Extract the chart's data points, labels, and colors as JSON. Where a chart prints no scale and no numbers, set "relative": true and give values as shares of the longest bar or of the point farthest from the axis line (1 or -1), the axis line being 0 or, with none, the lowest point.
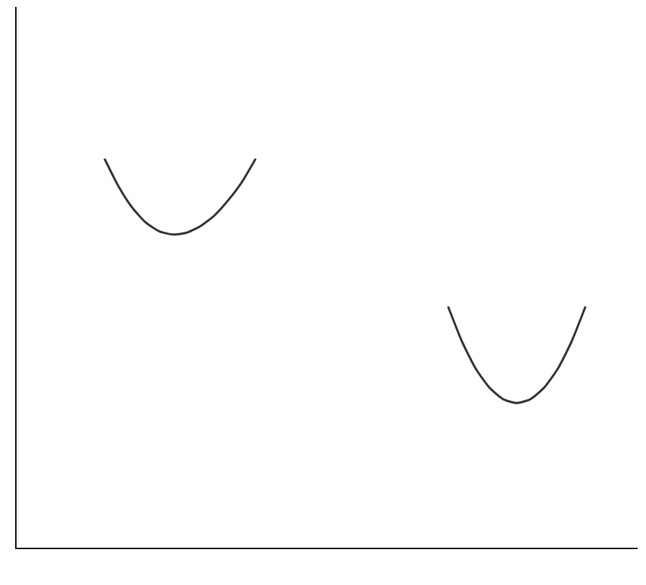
{
  "chart_data": {
    "type": "line",
    "relative": true,
    "categories": [
      null,
      null,
      null,
      null,
      null,
      null,
      null,
      null,
      null,
      null,
      null,
      null,
      null,
      null,
      null,
      null,
      null,
      null,
      null,
      null,
      null,
      null,
      null,
      null,
      null,
      null,
      null,
      null,
      null,
      null,
      null,
      null,
      null,
      null,
      null,
      null,
      null,
      null,
      null,
      null,
      null,
      null,
      null,
      null,
      null
    ],
    "series": [
      {
        "color": "#333333",
        "values": [
          null,
          null,
          null,
          null,
          null,
          null,
          1.0,
          0.93,
          0.875,
          0.836,
          0.813,
          0.805,
          0.81,
          0.827,
          0.854,
          0.893,
          0.94,
          1.0,
          null,
          null,
          null,
          null,
          null,
          null,
          null,
          null,
          null,
          null,
          null,
          null,
          null,
          null,
          null,
          null,
          null,
          null,
          null,
          null,
          null,
          null,
          null,
          null,
          null,
          null,
          null
        ]
      },
      {
        "color": "#333333",
        "values": [
          null,
          null,
          null,
          null,
          null,
          null,
          null,
          null,
          null,
          null,
          null,
          null,
          null,
          null,
          null,
          null,
          null,
          null,
          null,
          null,
          null,
          null,
          null,
          null,
          null,
          null,
          null,
          null,
          null,
          null,
          null,
          0.62,
          0.531,
          0.461,
          0.412,
          0.382,
          0.372,
          0.382,
          0.412,
          0.461,
          0.531,
          0.62,
          null,
          null,
          null
        ]
      }
    ],
    "marker": "none",
    "line_style": "solid"
  }
}
